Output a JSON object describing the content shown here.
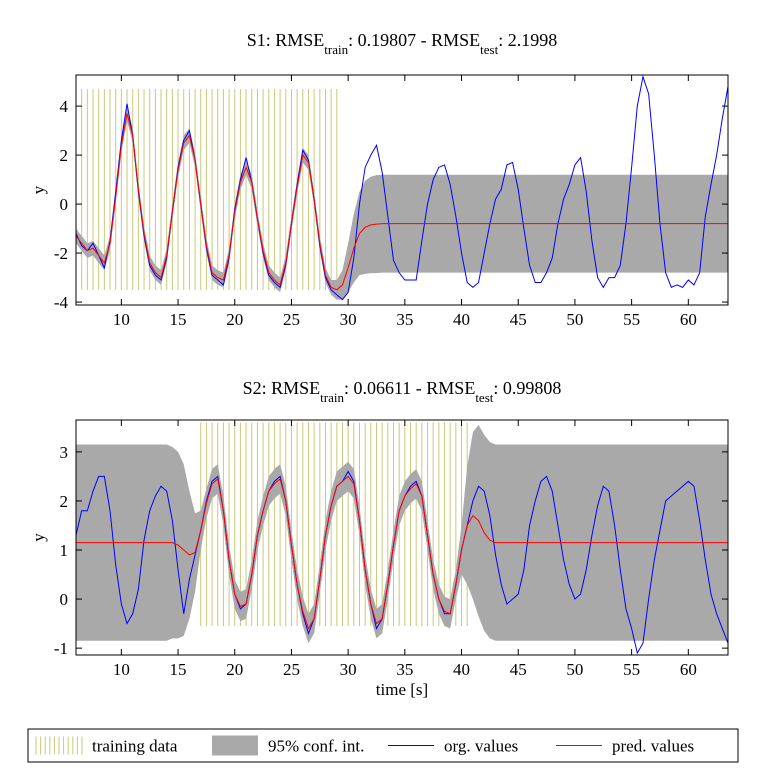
{
  "chart_data": [
    {
      "type": "line",
      "title": [
        "S1: RMSE",
        "train",
        ": 0.19807 - RMSE",
        "test",
        ": 2.1998"
      ],
      "ylabel": "y",
      "xlim": [
        6,
        63.5
      ],
      "xticks": [
        10,
        15,
        20,
        25,
        30,
        35,
        40,
        45,
        50,
        55,
        60
      ],
      "ylim": [
        -4.12,
        5.27
      ],
      "yticks": [
        -4,
        -2,
        0,
        2,
        4
      ],
      "x": [
        6,
        6.5,
        7,
        7.5,
        8,
        8.5,
        9,
        9.5,
        10,
        10.5,
        11,
        11.5,
        12,
        12.5,
        13,
        13.5,
        14,
        14.5,
        15,
        15.5,
        16,
        16.5,
        17,
        17.5,
        18,
        18.5,
        19,
        19.5,
        20,
        20.5,
        21,
        21.5,
        22,
        22.5,
        23,
        23.5,
        24,
        24.5,
        25,
        25.5,
        26,
        26.5,
        27,
        27.5,
        28,
        28.5,
        29,
        29.5,
        30,
        30.5,
        31,
        31.5,
        32,
        32.5,
        33,
        33.5,
        34,
        34.5,
        35,
        35.5,
        36,
        36.5,
        37,
        37.5,
        38,
        38.5,
        39,
        39.5,
        40,
        40.5,
        41,
        41.5,
        42,
        42.5,
        43,
        43.5,
        44,
        44.5,
        45,
        45.5,
        46,
        46.5,
        47,
        47.5,
        48,
        48.5,
        49,
        49.5,
        50,
        50.5,
        51,
        51.5,
        52,
        52.5,
        53,
        53.5,
        54,
        54.5,
        55,
        55.5,
        56,
        56.5,
        57,
        57.5,
        58,
        58.5,
        59,
        59.5,
        60,
        60.5,
        61,
        61.5,
        62,
        62.5,
        63,
        63.5
      ],
      "series": [
        {
          "name": "training data",
          "color": "#c9c97a",
          "x": [
            6,
            6.5,
            7,
            7.5,
            8,
            8.5,
            9,
            9.5,
            10,
            10.5,
            11,
            11.5,
            12,
            12.5,
            13,
            13.5,
            14,
            14.5,
            15,
            15.5,
            16,
            16.5,
            17,
            17.5,
            18,
            18.5,
            19,
            19.5,
            20,
            20.5,
            21,
            21.5,
            22,
            22.5,
            23,
            23.5,
            24,
            24.5,
            25,
            25.5,
            26,
            26.5,
            27,
            27.5,
            28,
            28.5,
            29
          ],
          "range": [
            -3.5,
            4.7
          ]
        },
        {
          "name": "95% conf. int.",
          "color": "#a9a9a9",
          "values": [
            0.3,
            0.3,
            0.3,
            0.3,
            0.3,
            0.3,
            0.3,
            0.3,
            0.3,
            0.3,
            0.3,
            0.3,
            0.3,
            0.3,
            0.3,
            0.3,
            0.3,
            0.3,
            0.3,
            0.3,
            0.3,
            0.3,
            0.3,
            0.3,
            0.3,
            0.3,
            0.3,
            0.3,
            0.3,
            0.3,
            0.3,
            0.3,
            0.3,
            0.3,
            0.3,
            0.3,
            0.3,
            0.3,
            0.3,
            0.3,
            0.3,
            0.3,
            0.3,
            0.3,
            0.3,
            0.3,
            0.4,
            0.6,
            1.0,
            1.4,
            1.7,
            1.9,
            1.97,
            2,
            2,
            2,
            2,
            2,
            2,
            2,
            2,
            2,
            2,
            2,
            2,
            2,
            2,
            2,
            2,
            2,
            2,
            2,
            2,
            2,
            2,
            2,
            2,
            2,
            2,
            2,
            2,
            2,
            2,
            2,
            2,
            2,
            2,
            2,
            2,
            2,
            2,
            2,
            2,
            2,
            2,
            2,
            2,
            2,
            2,
            2,
            2,
            2,
            2,
            2,
            2,
            2,
            2,
            2,
            2,
            2,
            2,
            2,
            2,
            2,
            2,
            2
          ]
        },
        {
          "name": "org. values",
          "color": "#0000ff",
          "values": [
            -1.2,
            -1.7,
            -1.9,
            -1.6,
            -2.1,
            -2.6,
            -1.5,
            0.5,
            2.6,
            4.1,
            2.8,
            0.5,
            -1.3,
            -2.5,
            -2.9,
            -3.1,
            -2.2,
            -0.3,
            1.5,
            2.6,
            3.0,
            1.8,
            0.0,
            -1.8,
            -2.9,
            -3.1,
            -3.3,
            -2.2,
            -0.2,
            1.0,
            1.9,
            0.9,
            -0.6,
            -2.0,
            -2.9,
            -3.2,
            -3.4,
            -2.5,
            -0.8,
            0.8,
            2.2,
            1.8,
            0.2,
            -1.7,
            -3.0,
            -3.5,
            -3.7,
            -3.9,
            -3.6,
            -2.2,
            0.0,
            1.5,
            2.0,
            2.4,
            1.3,
            -0.5,
            -2.3,
            -2.8,
            -3.1,
            -3.1,
            -3.1,
            -1.5,
            0.0,
            1.0,
            1.5,
            1.6,
            0.8,
            -0.5,
            -2.0,
            -3.2,
            -3.4,
            -3.2,
            -2.0,
            -0.8,
            0.2,
            0.6,
            1.6,
            1.7,
            0.6,
            -1.0,
            -2.5,
            -3.2,
            -3.2,
            -2.8,
            -2.2,
            -0.8,
            0.2,
            0.8,
            1.6,
            1.9,
            0.5,
            -1.5,
            -3.0,
            -3.4,
            -3.0,
            -3.0,
            -2.5,
            -0.8,
            1.5,
            4.0,
            5.2,
            4.5,
            2.0,
            -0.8,
            -2.8,
            -3.4,
            -3.3,
            -3.4,
            -3.1,
            -3.3,
            -2.8,
            -0.5,
            0.8,
            2.0,
            3.5,
            4.8
          ]
        },
        {
          "name": "pred. values",
          "color": "#ff0000",
          "values": [
            -1.3,
            -1.6,
            -1.9,
            -1.8,
            -2.1,
            -2.4,
            -1.6,
            0.3,
            2.4,
            3.7,
            2.8,
            0.6,
            -1.2,
            -2.4,
            -2.8,
            -3.0,
            -2.1,
            -0.3,
            1.4,
            2.5,
            2.8,
            1.8,
            0.0,
            -1.7,
            -2.8,
            -3.0,
            -3.1,
            -2.1,
            -0.3,
            0.9,
            1.5,
            0.9,
            -0.6,
            -1.9,
            -2.8,
            -3.1,
            -3.3,
            -2.4,
            -0.8,
            0.7,
            2.0,
            1.7,
            0.2,
            -1.6,
            -2.9,
            -3.4,
            -3.5,
            -3.3,
            -2.6,
            -1.8,
            -1.2,
            -0.95,
            -0.85,
            -0.82,
            -0.8,
            -0.8,
            -0.8,
            -0.8,
            -0.8,
            -0.8,
            -0.8,
            -0.8,
            -0.8,
            -0.8,
            -0.8,
            -0.8,
            -0.8,
            -0.8,
            -0.8,
            -0.8,
            -0.8,
            -0.8,
            -0.8,
            -0.8,
            -0.8,
            -0.8,
            -0.8,
            -0.8,
            -0.8,
            -0.8,
            -0.8,
            -0.8,
            -0.8,
            -0.8,
            -0.8,
            -0.8,
            -0.8,
            -0.8,
            -0.8,
            -0.8,
            -0.8,
            -0.8,
            -0.8,
            -0.8,
            -0.8,
            -0.8,
            -0.8,
            -0.8,
            -0.8,
            -0.8,
            -0.8,
            -0.8,
            -0.8,
            -0.8,
            -0.8,
            -0.8,
            -0.8,
            -0.8,
            -0.8,
            -0.8,
            -0.8,
            -0.8,
            -0.8,
            -0.8,
            -0.8,
            -0.8
          ]
        }
      ]
    },
    {
      "type": "line",
      "title": [
        "S2: RMSE",
        "train",
        ": 0.06611 - RMSE",
        "test",
        ": 0.99808"
      ],
      "xlabel": "time [s]",
      "ylabel": "y",
      "xlim": [
        6,
        63.5
      ],
      "xticks": [
        10,
        15,
        20,
        25,
        30,
        35,
        40,
        45,
        50,
        55,
        60
      ],
      "ylim": [
        -1.14,
        3.65
      ],
      "yticks": [
        -1,
        0,
        1,
        2,
        3
      ],
      "x": [
        6,
        6.5,
        7,
        7.5,
        8,
        8.5,
        9,
        9.5,
        10,
        10.5,
        11,
        11.5,
        12,
        12.5,
        13,
        13.5,
        14,
        14.5,
        15,
        15.5,
        16,
        16.5,
        17,
        17.5,
        18,
        18.5,
        19,
        19.5,
        20,
        20.5,
        21,
        21.5,
        22,
        22.5,
        23,
        23.5,
        24,
        24.5,
        25,
        25.5,
        26,
        26.5,
        27,
        27.5,
        28,
        28.5,
        29,
        29.5,
        30,
        30.5,
        31,
        31.5,
        32,
        32.5,
        33,
        33.5,
        34,
        34.5,
        35,
        35.5,
        36,
        36.5,
        37,
        37.5,
        38,
        38.5,
        39,
        39.5,
        40,
        40.5,
        41,
        41.5,
        42,
        42.5,
        43,
        43.5,
        44,
        44.5,
        45,
        45.5,
        46,
        46.5,
        47,
        47.5,
        48,
        48.5,
        49,
        49.5,
        50,
        50.5,
        51,
        51.5,
        52,
        52.5,
        53,
        53.5,
        54,
        54.5,
        55,
        55.5,
        56,
        56.5,
        57,
        57.5,
        58,
        58.5,
        59,
        59.5,
        60,
        60.5,
        61,
        61.5,
        62,
        62.5,
        63,
        63.5
      ],
      "series": [
        {
          "color": "#c9c97a",
          "x": [
            17,
            17.5,
            18,
            18.5,
            19,
            19.5,
            20,
            20.5,
            21,
            21.5,
            22,
            22.5,
            23,
            23.5,
            24,
            24.5,
            25,
            25.5,
            26,
            26.5,
            27,
            27.5,
            28,
            28.5,
            29,
            29.5,
            30,
            30.5,
            31,
            31.5,
            32,
            32.5,
            33,
            33.5,
            34,
            34.5,
            35,
            35.5,
            36,
            36.5,
            37,
            37.5,
            38,
            38.5,
            39,
            39.5,
            40,
            40.5
          ],
          "range": [
            -0.55,
            3.6
          ]
        },
        {
          "color": "#a9a9a9",
          "values": [
            2,
            2,
            2,
            2,
            2,
            2,
            2,
            2,
            2,
            2,
            2,
            2,
            2,
            2,
            2,
            2,
            2,
            1.95,
            1.9,
            1.75,
            1.3,
            0.8,
            0.4,
            0.3,
            0.3,
            0.3,
            0.3,
            0.3,
            0.3,
            0.3,
            0.3,
            0.3,
            0.3,
            0.3,
            0.3,
            0.3,
            0.3,
            0.3,
            0.3,
            0.3,
            0.3,
            0.3,
            0.3,
            0.3,
            0.3,
            0.3,
            0.3,
            0.3,
            0.3,
            0.3,
            0.3,
            0.3,
            0.3,
            0.3,
            0.3,
            0.3,
            0.3,
            0.3,
            0.3,
            0.3,
            0.3,
            0.3,
            0.3,
            0.3,
            0.3,
            0.3,
            0.3,
            0.3,
            0.5,
            1.2,
            1.7,
            1.95,
            2,
            2,
            2,
            2,
            2,
            2,
            2,
            2,
            2,
            2,
            2,
            2,
            2,
            2,
            2,
            2,
            2,
            2,
            2,
            2,
            2,
            2,
            2,
            2,
            2,
            2,
            2,
            2,
            2,
            2,
            2,
            2,
            2,
            2,
            2,
            2,
            2,
            2,
            2,
            2,
            2,
            2,
            2,
            2
          ]
        },
        {
          "color": "#0000ff",
          "values": [
            1.3,
            1.8,
            1.8,
            2.2,
            2.5,
            2.5,
            1.8,
            0.7,
            -0.1,
            -0.5,
            -0.3,
            0.2,
            1.2,
            1.8,
            2.1,
            2.3,
            2.2,
            1.6,
            0.6,
            -0.3,
            0.4,
            0.9,
            1.4,
            2.0,
            2.4,
            2.5,
            1.8,
            0.8,
            0.1,
            -0.2,
            -0.1,
            0.5,
            1.3,
            1.8,
            2.2,
            2.4,
            2.5,
            2.0,
            1.1,
            0.3,
            -0.3,
            -0.7,
            -0.4,
            0.4,
            1.3,
            1.9,
            2.3,
            2.4,
            2.6,
            2.4,
            1.6,
            0.6,
            -0.1,
            -0.6,
            -0.4,
            0.3,
            1.1,
            1.8,
            2.1,
            2.3,
            2.4,
            2.1,
            1.3,
            0.5,
            0.0,
            -0.3,
            -0.3,
            0.3,
            1.0,
            1.5,
            2.0,
            2.3,
            2.2,
            1.7,
            0.9,
            0.3,
            -0.1,
            0.0,
            0.1,
            0.6,
            1.5,
            2.0,
            2.4,
            2.5,
            2.2,
            1.5,
            0.8,
            0.3,
            0.0,
            0.1,
            0.6,
            1.3,
            1.9,
            2.3,
            2.2,
            1.5,
            0.6,
            -0.2,
            -0.6,
            -1.1,
            -0.9,
            0.0,
            0.8,
            1.4,
            2.0,
            2.1,
            2.2,
            2.3,
            2.4,
            2.3,
            1.6,
            0.8,
            0.1,
            -0.3,
            -0.6,
            -0.9
          ]
        },
        {
          "color": "#ff0000",
          "values": [
            1.15,
            1.15,
            1.15,
            1.15,
            1.15,
            1.15,
            1.15,
            1.15,
            1.15,
            1.15,
            1.15,
            1.15,
            1.15,
            1.15,
            1.15,
            1.15,
            1.15,
            1.15,
            1.1,
            1.0,
            0.9,
            0.95,
            1.4,
            1.95,
            2.35,
            2.45,
            1.8,
            0.8,
            0.1,
            -0.15,
            -0.1,
            0.5,
            1.3,
            1.8,
            2.2,
            2.35,
            2.45,
            2.0,
            1.1,
            0.3,
            -0.25,
            -0.6,
            -0.4,
            0.4,
            1.3,
            1.9,
            2.3,
            2.4,
            2.5,
            2.35,
            1.6,
            0.6,
            -0.1,
            -0.5,
            -0.4,
            0.3,
            1.1,
            1.8,
            2.1,
            2.25,
            2.35,
            2.1,
            1.3,
            0.5,
            0.0,
            -0.25,
            -0.3,
            0.3,
            1.0,
            1.5,
            1.7,
            1.6,
            1.35,
            1.2,
            1.15,
            1.15,
            1.15,
            1.15,
            1.15,
            1.15,
            1.15,
            1.15,
            1.15,
            1.15,
            1.15,
            1.15,
            1.15,
            1.15,
            1.15,
            1.15,
            1.15,
            1.15,
            1.15,
            1.15,
            1.15,
            1.15,
            1.15,
            1.15,
            1.15,
            1.15,
            1.15,
            1.15,
            1.15,
            1.15,
            1.15,
            1.15,
            1.15,
            1.15,
            1.15,
            1.15,
            1.15,
            1.15,
            1.15,
            1.15,
            1.15,
            1.15
          ]
        }
      ]
    }
  ]
}
